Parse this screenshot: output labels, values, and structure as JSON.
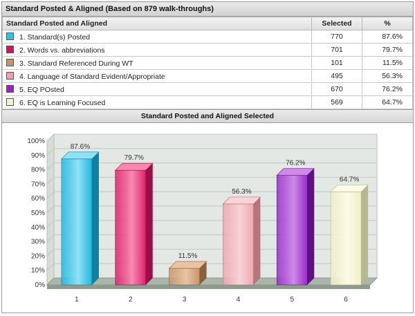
{
  "panel_title": "Standard Posted & Aligned (Based on 879 walk-throughs)",
  "table": {
    "headers": [
      "Standard Posted and Aligned",
      "Selected",
      "%"
    ],
    "rows": [
      {
        "label": "1. Standard(s) Posted",
        "selected": "770",
        "pct": "87.6%",
        "color": "#2ec3e6"
      },
      {
        "label": "2. Words vs. abbreviations",
        "selected": "701",
        "pct": "79.7%",
        "color": "#d4145a"
      },
      {
        "label": "3. Standard Referenced During WT",
        "selected": "101",
        "pct": "11.5%",
        "color": "#c79468"
      },
      {
        "label": "4. Language of Standard Evident/Appropriate",
        "selected": "495",
        "pct": "56.3%",
        "color": "#f0a0a8"
      },
      {
        "label": "5. EQ POsted",
        "selected": "670",
        "pct": "76.2%",
        "color": "#9b1fc4"
      },
      {
        "label": "6. EQ is Learning Focused",
        "selected": "569",
        "pct": "64.7%",
        "color": "#f2f2cc"
      }
    ]
  },
  "chart_title": "Standard Posted and Aligned Selected",
  "chart_data": {
    "type": "bar",
    "categories": [
      "1",
      "2",
      "3",
      "4",
      "5",
      "6"
    ],
    "values": [
      87.6,
      79.7,
      11.5,
      56.3,
      76.2,
      64.7
    ],
    "data_labels": [
      "87.6%",
      "79.7%",
      "11.5%",
      "56.3%",
      "76.2%",
      "64.7%"
    ],
    "ylim": [
      0,
      100
    ],
    "yticks": [
      "0%",
      "10%",
      "20%",
      "30%",
      "40%",
      "50%",
      "60%",
      "70%",
      "80%",
      "90%",
      "100%"
    ],
    "grid": true,
    "bar_colors": [
      {
        "front": "#22b6de",
        "side": "#0f7fa3",
        "top": "#8fe2f6"
      },
      {
        "front": "#e0206a",
        "side": "#9c0e45",
        "top": "#f58ab1"
      },
      {
        "front": "#c8956a",
        "side": "#8b6040",
        "top": "#e8c4a3"
      },
      {
        "front": "#eca7ae",
        "side": "#b5767c",
        "top": "#f8d3d7"
      },
      {
        "front": "#9a2ccc",
        "side": "#5e1282",
        "top": "#cd8ae8"
      },
      {
        "front": "#efefc8",
        "side": "#b8b890",
        "top": "#fbfbe6"
      }
    ]
  }
}
